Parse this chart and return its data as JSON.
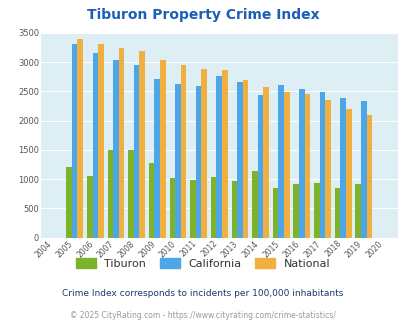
{
  "title": "Tiburon Property Crime Index",
  "years": [
    "2004",
    "2005",
    "2006",
    "2007",
    "2008",
    "2009",
    "2010",
    "2011",
    "2012",
    "2013",
    "2014",
    "2015",
    "2016",
    "2017",
    "2018",
    "2019",
    "2020"
  ],
  "tiburon": [
    0,
    1200,
    1060,
    1500,
    1500,
    1280,
    1020,
    990,
    1040,
    960,
    1140,
    840,
    910,
    940,
    840,
    910,
    0
  ],
  "california": [
    0,
    3310,
    3150,
    3030,
    2960,
    2720,
    2630,
    2590,
    2760,
    2660,
    2440,
    2610,
    2540,
    2490,
    2390,
    2340,
    0
  ],
  "national": [
    0,
    3390,
    3310,
    3240,
    3190,
    3040,
    2950,
    2890,
    2860,
    2700,
    2580,
    2490,
    2460,
    2360,
    2200,
    2100,
    0
  ],
  "tiburon_color": "#7db32a",
  "california_color": "#4da6e8",
  "national_color": "#f0b040",
  "background_color": "#ddeef5",
  "ylim": [
    0,
    3500
  ],
  "yticks": [
    0,
    500,
    1000,
    1500,
    2000,
    2500,
    3000,
    3500
  ],
  "subtitle": "Crime Index corresponds to incidents per 100,000 inhabitants",
  "footer": "© 2025 CityRating.com - https://www.cityrating.com/crime-statistics/",
  "title_color": "#1a5fb4",
  "subtitle_color": "#1a3a6b",
  "footer_color": "#999999",
  "bar_width": 0.27
}
